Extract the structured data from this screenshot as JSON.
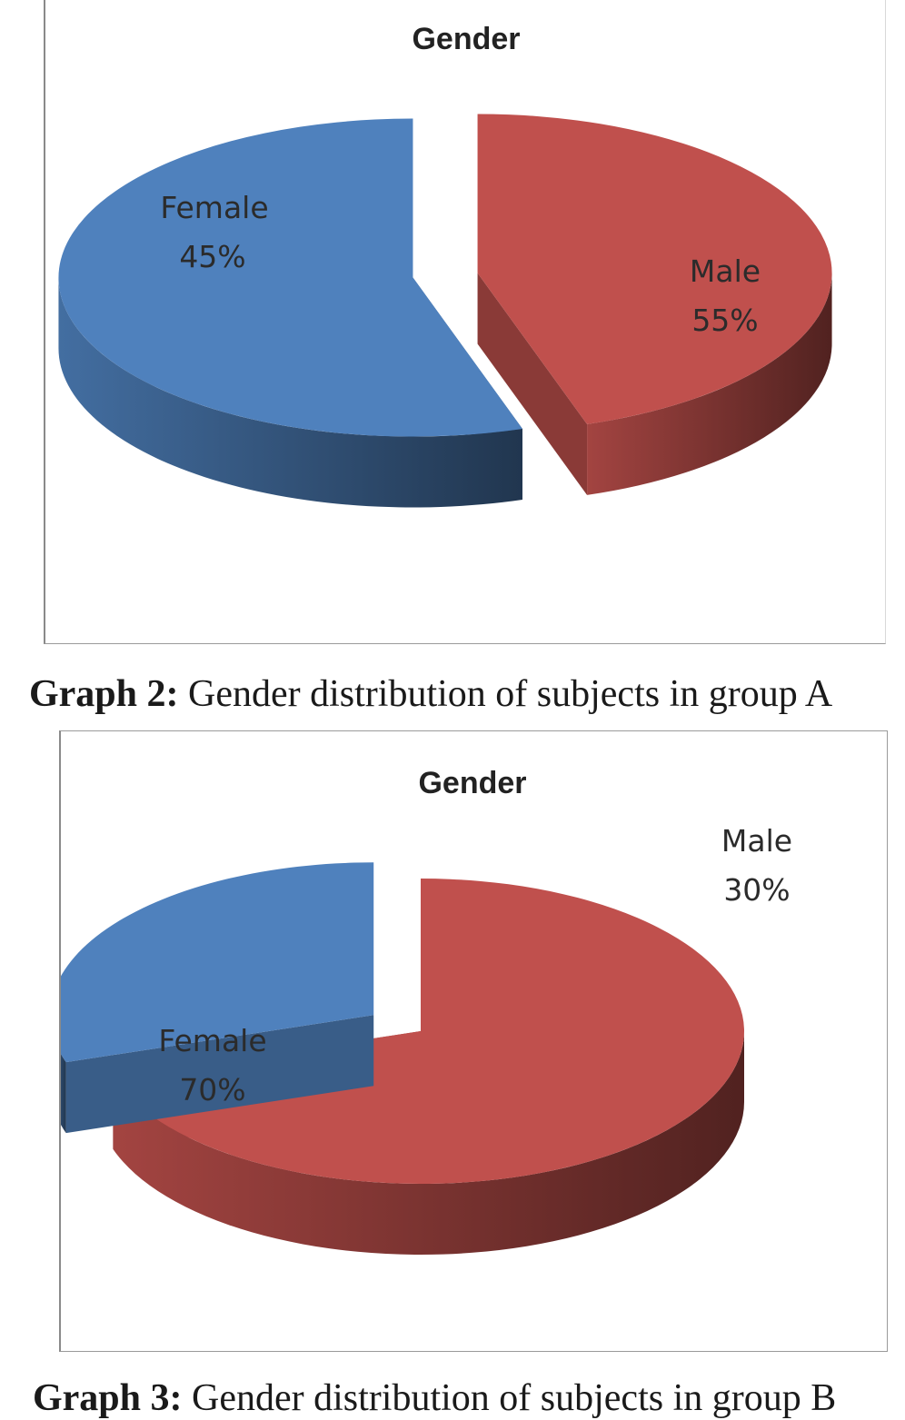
{
  "chart_data": [
    {
      "type": "pie",
      "title": "Gender",
      "slices": [
        {
          "label": "Female",
          "value": 45,
          "value_label": "45%",
          "color": "#c0504d",
          "exploded": true
        },
        {
          "label": "Male",
          "value": 55,
          "value_label": "55%",
          "color": "#4f81bd",
          "exploded": true
        }
      ],
      "style": "3d-exploded",
      "caption": {
        "prefix": "Graph 2:",
        "text": "Gender distribution of subjects in group A"
      }
    },
    {
      "type": "pie",
      "title": "Gender",
      "slices": [
        {
          "label": "Female",
          "value": 70,
          "value_label": "70%",
          "color": "#c0504d",
          "exploded": false
        },
        {
          "label": "Male",
          "value": 30,
          "value_label": "30%",
          "color": "#4f81bd",
          "exploded": true
        }
      ],
      "style": "3d-exploded",
      "caption": {
        "prefix": "Graph 3:",
        "text": "Gender distribution of subjects in group B"
      }
    }
  ]
}
